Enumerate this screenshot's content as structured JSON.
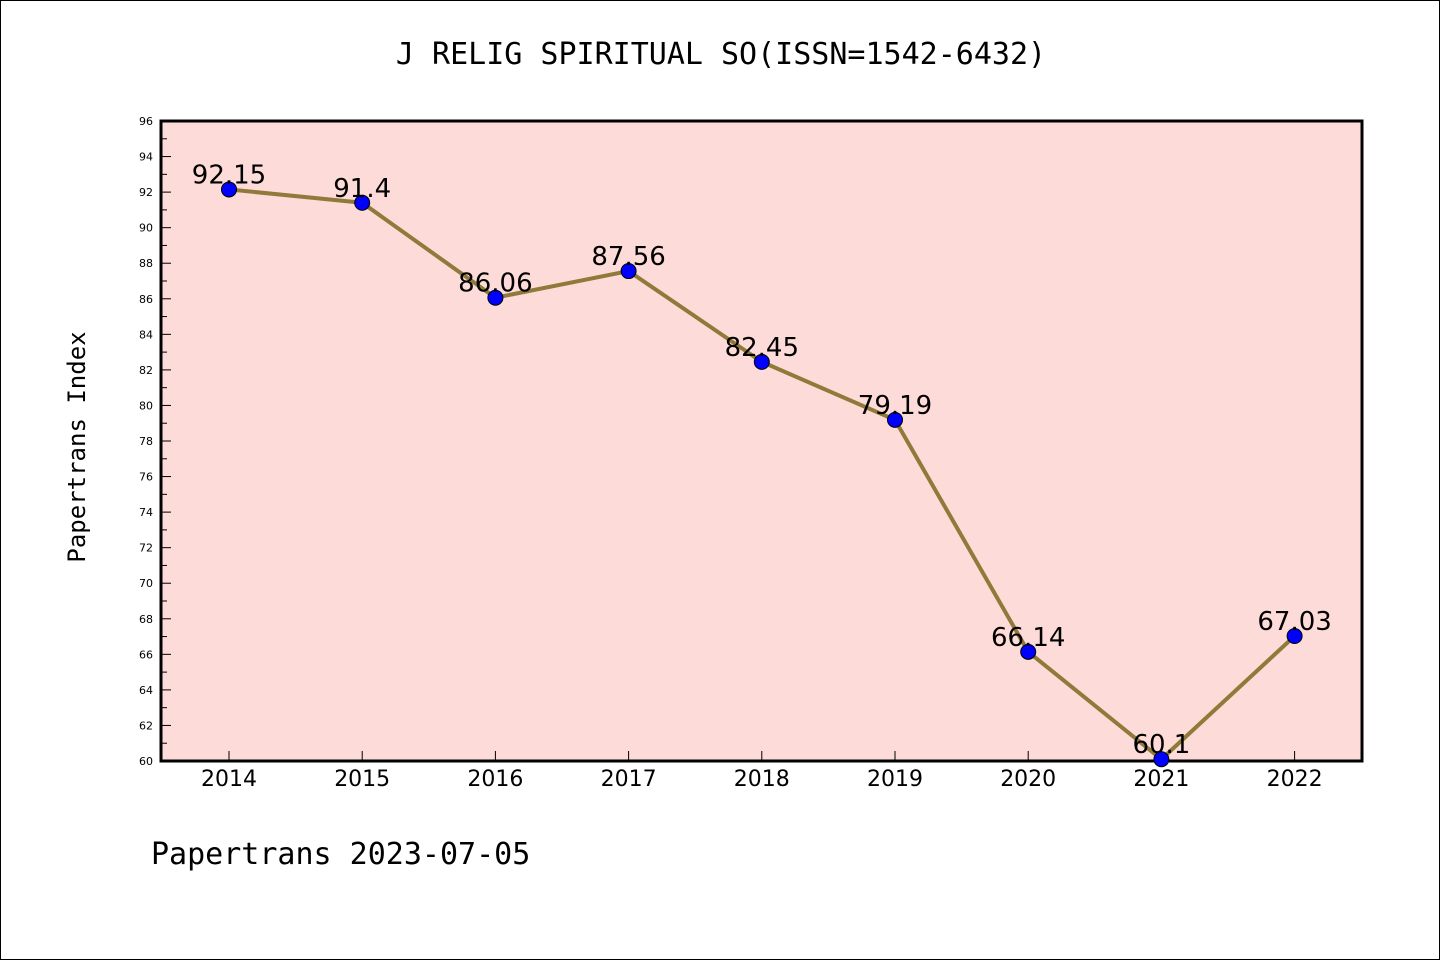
{
  "chart_data": {
    "type": "line",
    "title": "J RELIG SPIRITUAL SO(ISSN=1542-6432)",
    "xlabel": "",
    "ylabel": "Papertrans Index",
    "x": [
      "2014",
      "2015",
      "2016",
      "2017",
      "2018",
      "2019",
      "2020",
      "2021",
      "2022"
    ],
    "series": [
      {
        "values": [
          92.15,
          91.4,
          86.06,
          87.56,
          82.45,
          79.19,
          66.14,
          60.1,
          67.03
        ]
      }
    ],
    "data_labels": [
      "92.15",
      "91.4",
      "86.06",
      "87.56",
      "82.45",
      "79.19",
      "66.14",
      "60.1",
      "67.03"
    ],
    "ylim": [
      60,
      96
    ],
    "yticks": [
      60,
      62,
      64,
      66,
      68,
      70,
      72,
      74,
      76,
      78,
      80,
      82,
      84,
      86,
      88,
      90,
      92,
      94,
      96
    ],
    "grid": false,
    "legend": "none",
    "colors": {
      "plot_background": "#fddbd8",
      "line": "#8f7a3a",
      "marker": "#0000ff",
      "axis": "#000000"
    }
  },
  "footer": "Papertrans 2023-07-05"
}
